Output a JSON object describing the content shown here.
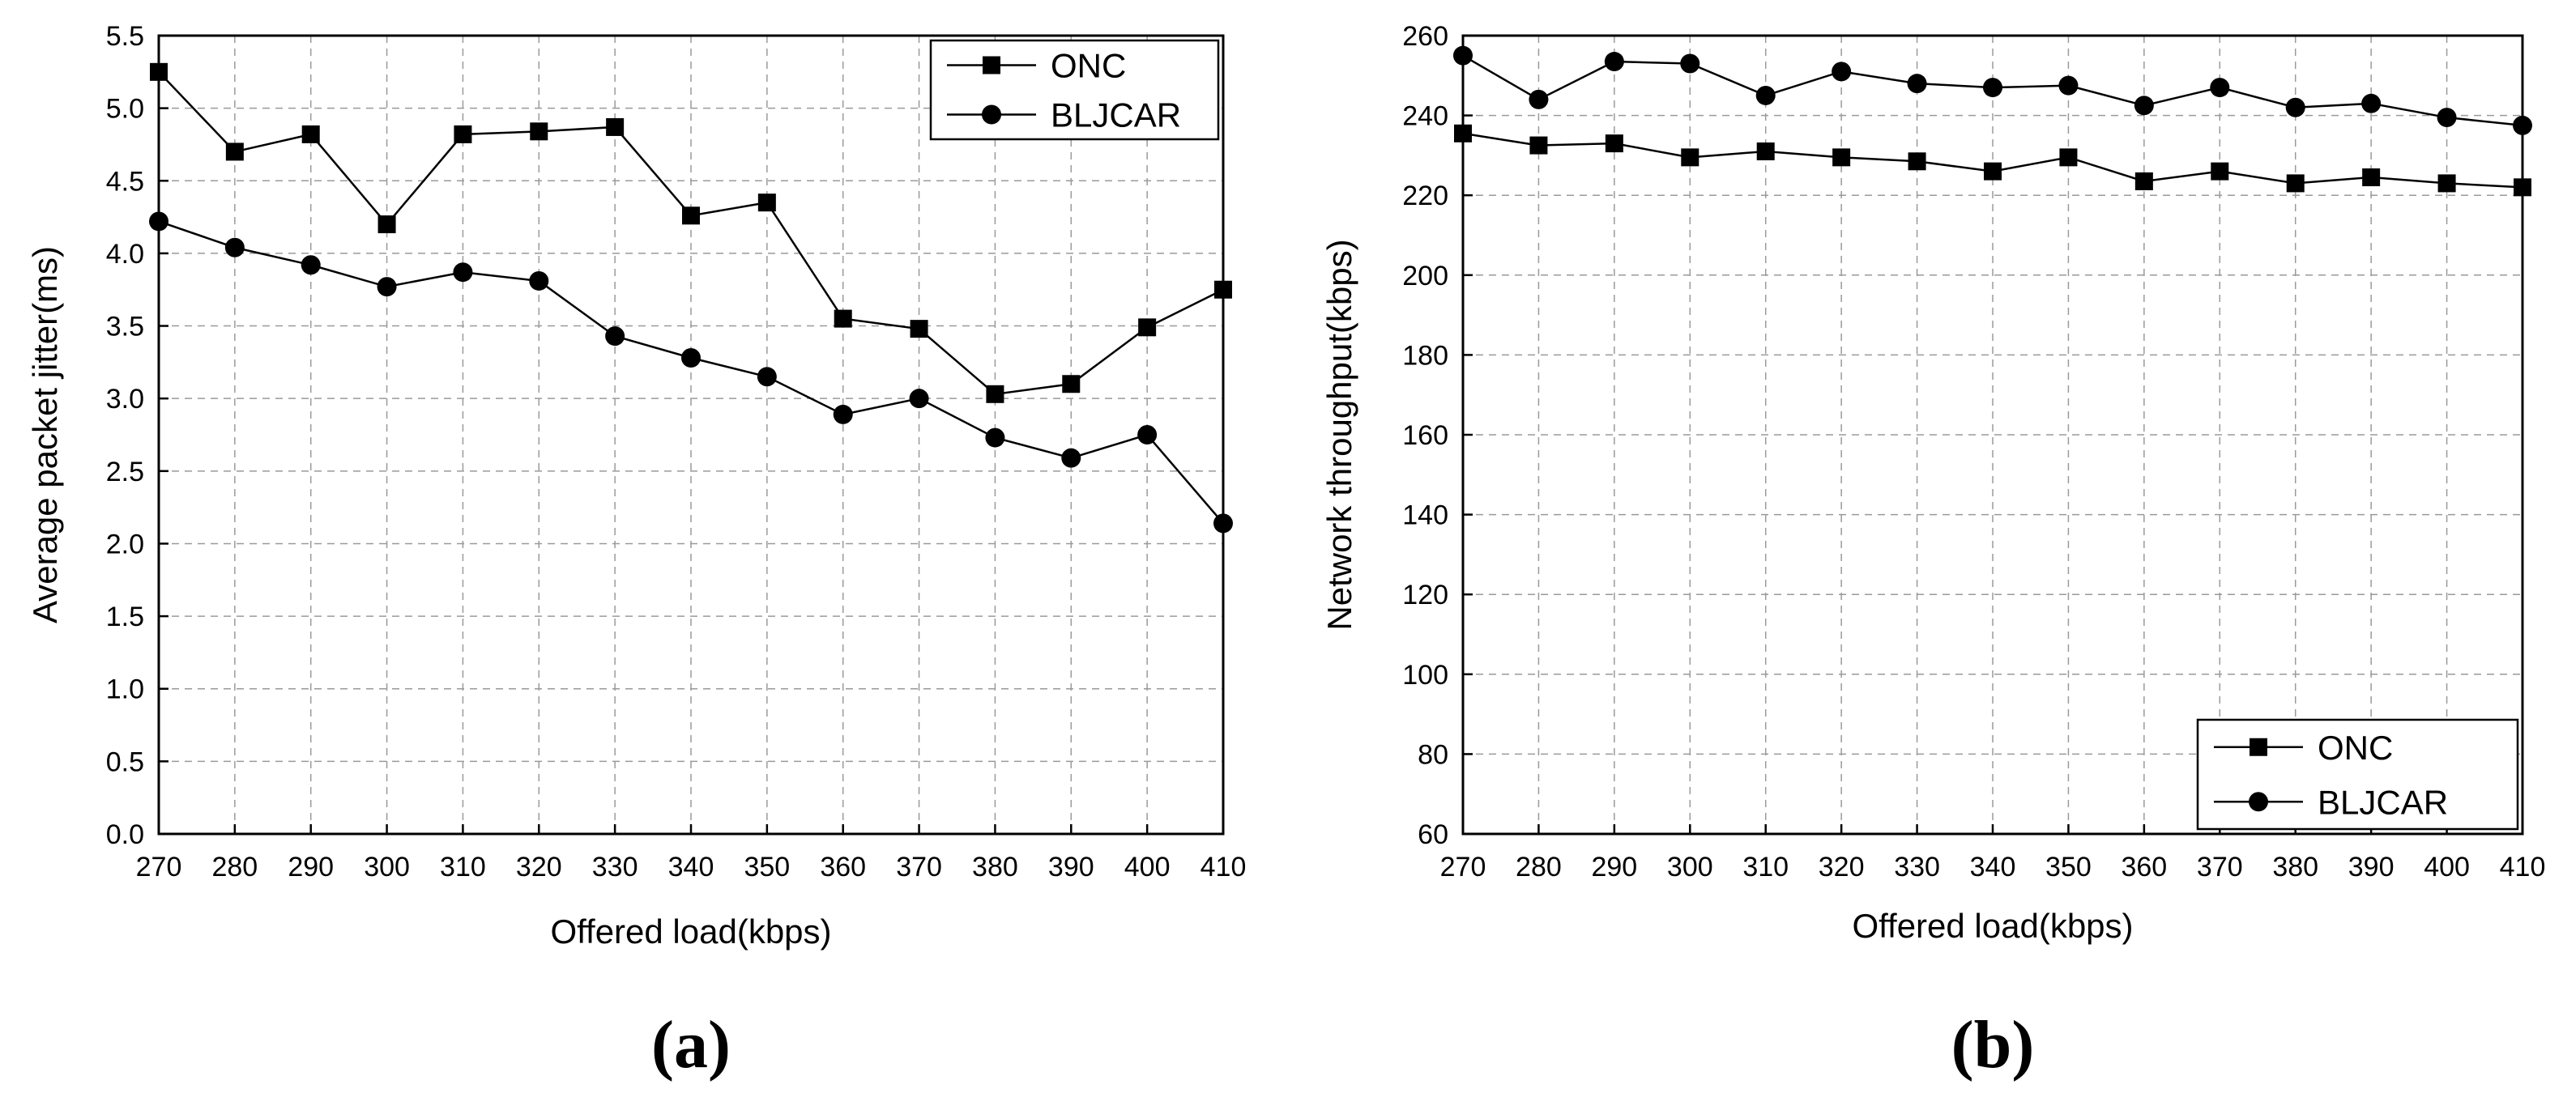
{
  "chart_data": [
    {
      "type": "line",
      "panel_label": "(a)",
      "xlabel": "Offered load(kbps)",
      "ylabel": "Average packet jitter(ms)",
      "xlim": [
        270,
        410
      ],
      "ylim": [
        0.0,
        5.5
      ],
      "x": [
        270,
        280,
        290,
        300,
        310,
        320,
        330,
        340,
        350,
        360,
        370,
        380,
        390,
        400,
        410
      ],
      "x_ticks": [
        "270",
        "280",
        "290",
        "300",
        "310",
        "320",
        "330",
        "340",
        "350",
        "360",
        "370",
        "380",
        "390",
        "400",
        "410"
      ],
      "y_ticks": [
        "0.0",
        "0.5",
        "1.0",
        "1.5",
        "2.0",
        "2.5",
        "3.0",
        "3.5",
        "4.0",
        "4.5",
        "5.0",
        "5.5"
      ],
      "grid": true,
      "legend_position": "top-right",
      "series": [
        {
          "name": "ONC",
          "marker": "square",
          "values": [
            5.25,
            4.7,
            4.82,
            4.2,
            4.82,
            4.84,
            4.87,
            4.26,
            4.35,
            3.55,
            3.48,
            3.03,
            3.1,
            3.49,
            3.75
          ]
        },
        {
          "name": "BLJCAR",
          "marker": "circle",
          "values": [
            4.22,
            4.04,
            3.92,
            3.77,
            3.87,
            3.81,
            3.43,
            3.28,
            3.15,
            2.89,
            3.0,
            2.73,
            2.59,
            2.75,
            2.14
          ]
        }
      ]
    },
    {
      "type": "line",
      "panel_label": "(b)",
      "xlabel": "Offered load(kbps)",
      "ylabel": "Network throughput(kbps)",
      "xlim": [
        270,
        410
      ],
      "ylim": [
        60,
        260
      ],
      "x": [
        270,
        280,
        290,
        300,
        310,
        320,
        330,
        340,
        350,
        360,
        370,
        380,
        390,
        400,
        410
      ],
      "x_ticks": [
        "270",
        "280",
        "290",
        "300",
        "310",
        "320",
        "330",
        "340",
        "350",
        "360",
        "370",
        "380",
        "390",
        "400",
        "410"
      ],
      "y_ticks": [
        "60",
        "80",
        "100",
        "120",
        "140",
        "160",
        "180",
        "200",
        "220",
        "240",
        "260"
      ],
      "grid": true,
      "legend_position": "bottom-right",
      "series": [
        {
          "name": "ONC",
          "marker": "square",
          "values": [
            235.5,
            232.5,
            233.0,
            229.5,
            231.0,
            229.5,
            228.5,
            226.0,
            229.5,
            223.5,
            226.0,
            223.0,
            224.5,
            223.0,
            222.0
          ]
        },
        {
          "name": "BLJCAR",
          "marker": "circle",
          "values": [
            255.0,
            244.0,
            253.5,
            253.0,
            245.0,
            251.0,
            248.0,
            247.0,
            247.5,
            242.5,
            247.0,
            242.0,
            243.0,
            239.5,
            237.5
          ]
        }
      ]
    }
  ]
}
